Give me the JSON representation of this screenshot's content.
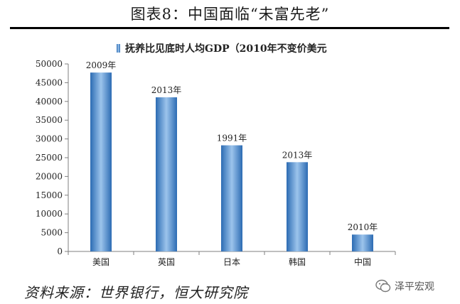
{
  "figure": {
    "title": "图表8：中国面临“未富先老”",
    "source": "资料来源：世界银行，恒大研究院",
    "watermark": "泽平宏观"
  },
  "chart_data": {
    "type": "bar",
    "title": "",
    "legend": {
      "label": "抚养比见底时人均GDP（2010年不变价美元",
      "position": "top"
    },
    "categories": [
      "美国",
      "英国",
      "日本",
      "韩国",
      "中国"
    ],
    "values": [
      47700,
      41100,
      28300,
      23800,
      4500
    ],
    "bar_labels": [
      "2009年",
      "2013年",
      "1991年",
      "2013年",
      "2010年"
    ],
    "y_ticks": [
      0,
      5000,
      10000,
      15000,
      20000,
      25000,
      30000,
      35000,
      40000,
      45000,
      50000
    ],
    "ylim": [
      0,
      50000
    ],
    "xlabel": "",
    "ylabel": "",
    "grid": false,
    "colors": {
      "bar_dark": "#2c6bb3",
      "bar_light": "#9cc4ec",
      "axis": "#7f7f7f"
    }
  }
}
